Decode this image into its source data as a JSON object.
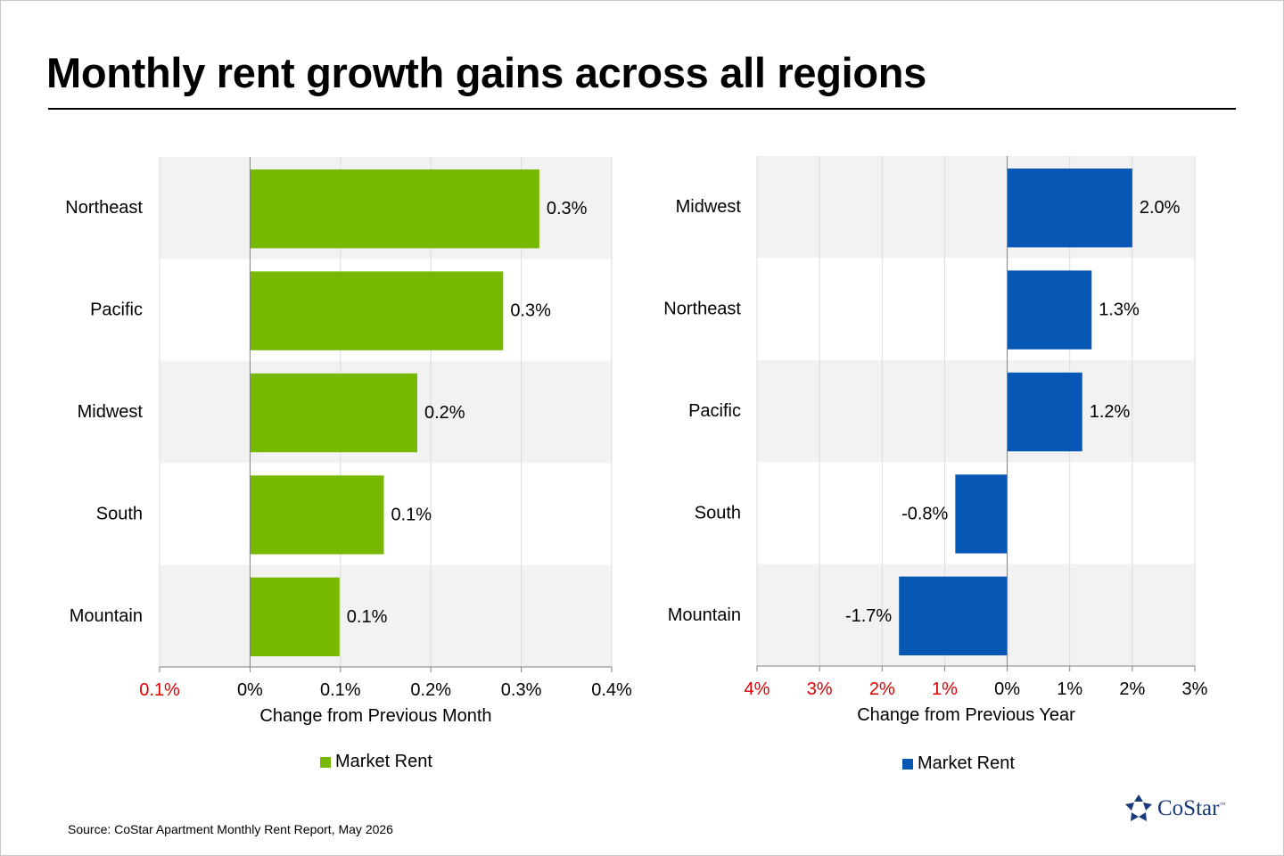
{
  "title": "Monthly rent growth gains across all regions",
  "source": "Source: CoStar Apartment Monthly Rent Report, May 2026",
  "logo": {
    "text": "CoStar",
    "tm": "™",
    "color": "#1a3a7a"
  },
  "chart_data": [
    {
      "type": "bar",
      "orientation": "horizontal",
      "categories": [
        "Northeast",
        "Pacific",
        "Midwest",
        "South",
        "Mountain"
      ],
      "series": [
        {
          "name": "Market Rent",
          "color": "#77b900",
          "values": [
            0.32,
            0.28,
            0.185,
            0.148,
            0.099
          ],
          "labels": [
            "0.3%",
            "0.3%",
            "0.2%",
            "0.1%",
            "0.1%"
          ]
        }
      ],
      "xlim": [
        -0.1,
        0.4
      ],
      "xticks": [
        -0.1,
        0,
        0.1,
        0.2,
        0.3,
        0.4
      ],
      "xtick_labels": [
        "0.1%",
        "0%",
        "0.1%",
        "0.2%",
        "0.3%",
        "0.4%"
      ],
      "xtick_colors": [
        "#e00000",
        "#000000",
        "#000000",
        "#000000",
        "#000000",
        "#000000"
      ],
      "xlabel": "Change from Previous Month",
      "grid": true,
      "legend": "bottom",
      "legend_label": "Market Rent"
    },
    {
      "type": "bar",
      "orientation": "horizontal",
      "categories": [
        "Midwest",
        "Northeast",
        "Pacific",
        "South",
        "Mountain"
      ],
      "series": [
        {
          "name": "Market Rent",
          "color": "#0757b5",
          "values": [
            2.0,
            1.35,
            1.2,
            -0.83,
            -1.73
          ],
          "labels": [
            "2.0%",
            "1.3%",
            "1.2%",
            "-0.8%",
            "-1.7%"
          ]
        }
      ],
      "xlim": [
        -4,
        3
      ],
      "xticks": [
        -4,
        -3,
        -2,
        -1,
        0,
        1,
        2,
        3
      ],
      "xtick_labels": [
        "4%",
        "3%",
        "2%",
        "1%",
        "0%",
        "1%",
        "2%",
        "3%"
      ],
      "xtick_colors": [
        "#e00000",
        "#e00000",
        "#e00000",
        "#e00000",
        "#000000",
        "#000000",
        "#000000",
        "#000000"
      ],
      "xlabel": "Change from Previous Year",
      "grid": true,
      "legend": "bottom",
      "legend_label": "Market Rent"
    }
  ]
}
